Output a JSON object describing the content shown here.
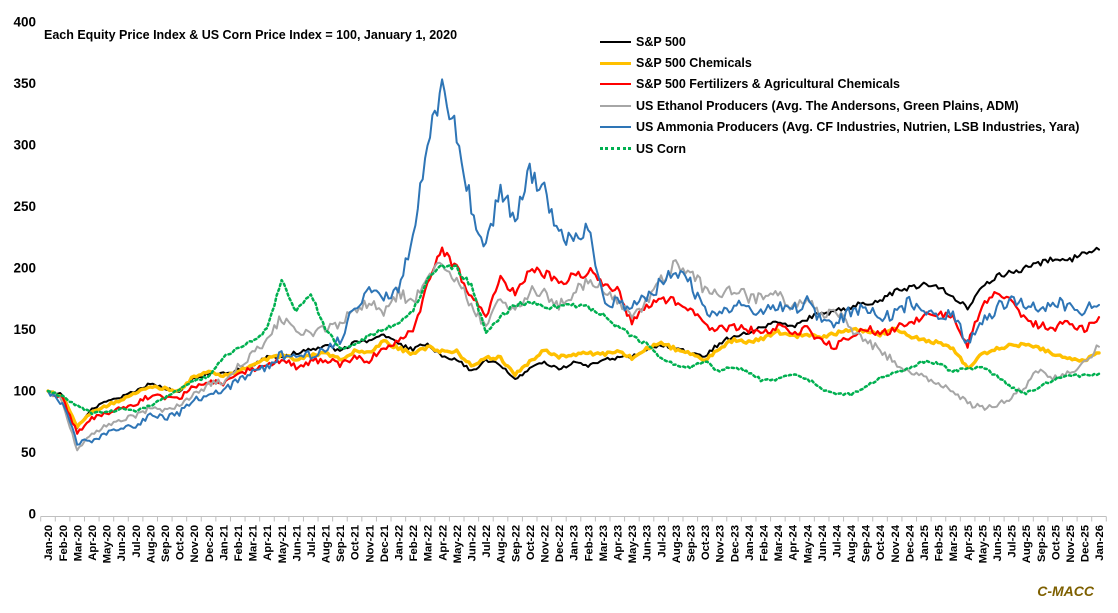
{
  "title": "Each Equity Price Index & US Corn Price Index = 100, January 1, 2020",
  "watermark": "C-MACC",
  "chart_data": {
    "type": "line",
    "title": "Each Equity Price Index & US Corn Price Index = 100, January 1, 2020",
    "xlabel": "",
    "ylabel": "",
    "ylim": [
      0,
      400
    ],
    "yticks": [
      0,
      50,
      100,
      150,
      200,
      250,
      300,
      350,
      400
    ],
    "grid": false,
    "legend_position": "top-right",
    "x": [
      "Jan-20",
      "Feb-20",
      "Mar-20",
      "Apr-20",
      "May-20",
      "Jun-20",
      "Jul-20",
      "Aug-20",
      "Sep-20",
      "Oct-20",
      "Nov-20",
      "Dec-20",
      "Jan-21",
      "Feb-21",
      "Mar-21",
      "Apr-21",
      "May-21",
      "Jun-21",
      "Jul-21",
      "Aug-21",
      "Sep-21",
      "Oct-21",
      "Nov-21",
      "Dec-21",
      "Jan-22",
      "Feb-22",
      "Mar-22",
      "Apr-22",
      "May-22",
      "Jun-22",
      "Jul-22",
      "Aug-22",
      "Sep-22",
      "Oct-22",
      "Nov-22",
      "Dec-22",
      "Jan-23",
      "Feb-23",
      "Mar-23",
      "Apr-23",
      "May-23",
      "Jun-23",
      "Jul-23",
      "Aug-23",
      "Sep-23",
      "Oct-23",
      "Nov-23",
      "Dec-23",
      "Jan-24",
      "Feb-24",
      "Mar-24",
      "Apr-24",
      "May-24",
      "Jun-24",
      "Jul-24",
      "Aug-24",
      "Sep-24",
      "Oct-24",
      "Nov-24",
      "Dec-24",
      "Jan-25",
      "Feb-25",
      "Mar-25",
      "Apr-25",
      "May-25",
      "Jun-25",
      "Jul-25",
      "Aug-25",
      "Sep-25",
      "Oct-25",
      "Nov-25",
      "Dec-25",
      "Jan-26"
    ],
    "series": [
      {
        "name": "S&P 500",
        "color": "#000000",
        "style": "solid",
        "width": 2,
        "noise": 0.012,
        "values": [
          100,
          97,
          70,
          85,
          92,
          95,
          100,
          106,
          102,
          100,
          110,
          114,
          114,
          117,
          121,
          127,
          128,
          131,
          134,
          137,
          132,
          139,
          140,
          145,
          138,
          134,
          139,
          128,
          126,
          116,
          125,
          121,
          110,
          118,
          124,
          117,
          124,
          121,
          125,
          127,
          128,
          134,
          138,
          135,
          131,
          128,
          139,
          145,
          147,
          152,
          157,
          152,
          159,
          163,
          165,
          168,
          172,
          173,
          181,
          184,
          187,
          185,
          176,
          168,
          184,
          193,
          197,
          200,
          204,
          208,
          206,
          212,
          215
        ]
      },
      {
        "name": "S&P 500 Chemicals",
        "color": "#FFC000",
        "style": "solid",
        "width": 3.4,
        "noise": 0.011,
        "values": [
          100,
          95,
          71,
          83,
          88,
          93,
          98,
          104,
          102,
          100,
          112,
          115,
          112,
          116,
          122,
          126,
          129,
          126,
          129,
          131,
          126,
          132,
          131,
          140,
          135,
          130,
          136,
          132,
          132,
          121,
          127,
          127,
          113,
          124,
          133,
          128,
          130,
          131,
          130,
          132,
          127,
          135,
          139,
          134,
          131,
          124,
          135,
          142,
          140,
          143,
          148,
          144,
          147,
          143,
          147,
          150,
          149,
          146,
          150,
          145,
          142,
          139,
          135,
          118,
          130,
          134,
          137,
          138,
          134,
          130,
          126,
          125,
          131
        ]
      },
      {
        "name": "S&P 500 Fertilizers & Agricultural Chemicals",
        "color": "#FF0000",
        "style": "solid",
        "width": 2.2,
        "noise": 0.021,
        "values": [
          100,
          94,
          66,
          78,
          82,
          86,
          90,
          96,
          95,
          94,
          104,
          108,
          106,
          114,
          118,
          122,
          125,
          120,
          124,
          126,
          122,
          128,
          125,
          135,
          140,
          150,
          185,
          215,
          200,
          175,
          162,
          190,
          178,
          200,
          196,
          190,
          192,
          198,
          188,
          182,
          155,
          168,
          175,
          172,
          168,
          152,
          150,
          153,
          150,
          146,
          152,
          148,
          150,
          140,
          136,
          146,
          151,
          147,
          150,
          157,
          160,
          163,
          160,
          138,
          168,
          183,
          172,
          157,
          153,
          152,
          155,
          150,
          160
        ]
      },
      {
        "name": "US Ethanol Producers (Avg. The Andersons, Green Plains, ADM)",
        "color": "#A6A6A6",
        "style": "solid",
        "width": 2,
        "noise": 0.026,
        "values": [
          100,
          92,
          52,
          65,
          72,
          76,
          80,
          86,
          84,
          88,
          98,
          105,
          108,
          120,
          130,
          140,
          160,
          150,
          145,
          152,
          155,
          165,
          172,
          163,
          180,
          172,
          190,
          205,
          190,
          170,
          152,
          175,
          165,
          182,
          180,
          170,
          180,
          188,
          185,
          175,
          162,
          172,
          190,
          205,
          198,
          182,
          178,
          184,
          176,
          175,
          180,
          167,
          174,
          161,
          166,
          151,
          141,
          133,
          124,
          116,
          112,
          106,
          100,
          90,
          86,
          88,
          95,
          105,
          118,
          110,
          115,
          124,
          136
        ]
      },
      {
        "name": "US Ammonia Producers (Avg. CF Industries, Nutrien, LSB Industries, Yara)",
        "color": "#2E75B6",
        "style": "solid",
        "width": 2,
        "noise": 0.03,
        "values": [
          100,
          90,
          58,
          60,
          65,
          70,
          72,
          80,
          78,
          82,
          92,
          98,
          100,
          108,
          115,
          120,
          130,
          128,
          130,
          132,
          142,
          170,
          180,
          175,
          182,
          225,
          307,
          345,
          310,
          250,
          215,
          265,
          240,
          278,
          262,
          228,
          220,
          232,
          175,
          172,
          168,
          175,
          188,
          196,
          188,
          165,
          160,
          170,
          168,
          163,
          170,
          166,
          172,
          158,
          156,
          165,
          167,
          160,
          162,
          172,
          166,
          159,
          165,
          138,
          155,
          168,
          172,
          170,
          166,
          172,
          168,
          166,
          170
        ]
      },
      {
        "name": "US Corn",
        "color": "#00B050",
        "style": "dotted",
        "width": 2.5,
        "noise": 0.011,
        "values": [
          100,
          96,
          88,
          82,
          83,
          85,
          84,
          88,
          95,
          102,
          108,
          112,
          128,
          135,
          140,
          150,
          190,
          165,
          180,
          150,
          135,
          138,
          145,
          150,
          155,
          165,
          190,
          202,
          200,
          185,
          148,
          160,
          170,
          172,
          168,
          168,
          170,
          168,
          162,
          152,
          145,
          138,
          126,
          121,
          119,
          124,
          116,
          120,
          115,
          108,
          110,
          114,
          110,
          102,
          98,
          97,
          103,
          111,
          114,
          118,
          124,
          122,
          116,
          118,
          120,
          112,
          103,
          98,
          104,
          110,
          112,
          113,
          114
        ]
      }
    ]
  }
}
